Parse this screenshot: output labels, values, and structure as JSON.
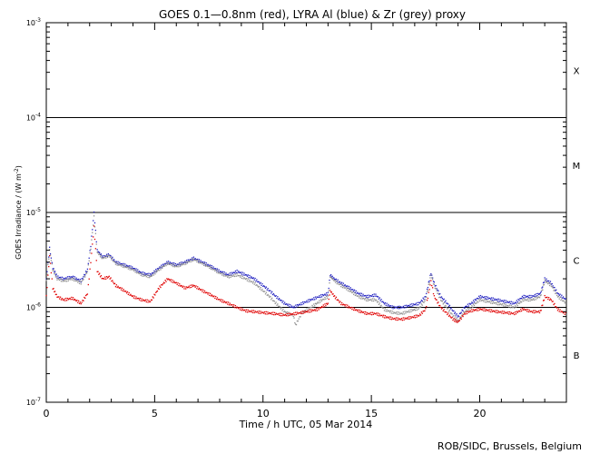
{
  "chart_data": {
    "type": "scatter",
    "title": "GOES 0.1—0.8nm (red), LYRA Al (blue) & Zr (grey) proxy",
    "xlabel": "Time / h UTC, 05 Mar 2014",
    "ylabel_main": "GOES Irradiance / (W m",
    "ylabel_exp": "-2",
    "ylabel_close": ")",
    "credit": "ROB/SIDC, Brussels, Belgium",
    "xlim": [
      0,
      24
    ],
    "ylim_log10": [
      -7,
      -3
    ],
    "y_scale": "log",
    "x_ticks": [
      {
        "value": 0,
        "label": "0"
      },
      {
        "value": 5,
        "label": "5"
      },
      {
        "value": 10,
        "label": "10"
      },
      {
        "value": 15,
        "label": "15"
      },
      {
        "value": 20,
        "label": "20"
      }
    ],
    "y_ticks": [
      {
        "exp": -7,
        "base": "10",
        "sup": "-7"
      },
      {
        "exp": -6,
        "base": "10",
        "sup": "-6"
      },
      {
        "exp": -5,
        "base": "10",
        "sup": "-5"
      },
      {
        "exp": -4,
        "base": "10",
        "sup": "-4"
      },
      {
        "exp": -3,
        "base": "10",
        "sup": "-3"
      }
    ],
    "flare_classes": [
      {
        "label": "X",
        "center_log10": -3.5
      },
      {
        "label": "M",
        "center_log10": -4.5
      },
      {
        "label": "C",
        "center_log10": -5.5
      },
      {
        "label": "B",
        "center_log10": -6.5
      }
    ],
    "threshold_lines_log10": [
      -4,
      -5,
      -6
    ],
    "series": [
      {
        "color": "#2020c0",
        "points": [
          [
            0.0,
            2e-06
          ],
          [
            0.15,
            4.2e-06
          ],
          [
            0.3,
            2.6e-06
          ],
          [
            0.5,
            2.1e-06
          ],
          [
            0.8,
            2e-06
          ],
          [
            1.2,
            2.1e-06
          ],
          [
            1.6,
            1.9e-06
          ],
          [
            1.9,
            2.5e-06
          ],
          [
            2.05,
            4.5e-06
          ],
          [
            2.2,
            1e-05
          ],
          [
            2.35,
            4e-06
          ],
          [
            2.6,
            3.4e-06
          ],
          [
            2.9,
            3.6e-06
          ],
          [
            3.2,
            3e-06
          ],
          [
            3.6,
            2.8e-06
          ],
          [
            4.0,
            2.6e-06
          ],
          [
            4.4,
            2.3e-06
          ],
          [
            4.8,
            2.2e-06
          ],
          [
            5.2,
            2.6e-06
          ],
          [
            5.6,
            3e-06
          ],
          [
            6.0,
            2.8e-06
          ],
          [
            6.4,
            3e-06
          ],
          [
            6.8,
            3.3e-06
          ],
          [
            7.2,
            3e-06
          ],
          [
            7.6,
            2.7e-06
          ],
          [
            8.0,
            2.4e-06
          ],
          [
            8.4,
            2.2e-06
          ],
          [
            8.8,
            2.4e-06
          ],
          [
            9.2,
            2.2e-06
          ],
          [
            9.6,
            2e-06
          ],
          [
            10.0,
            1.7e-06
          ],
          [
            10.3,
            1.5e-06
          ],
          [
            10.6,
            1.3e-06
          ],
          [
            11.0,
            1.1e-06
          ],
          [
            11.4,
            1e-06
          ],
          [
            11.8,
            1.1e-06
          ],
          [
            12.2,
            1.2e-06
          ],
          [
            12.6,
            1.3e-06
          ],
          [
            13.0,
            1.4e-06
          ],
          [
            13.1,
            2.2e-06
          ],
          [
            13.3,
            2e-06
          ],
          [
            13.6,
            1.8e-06
          ],
          [
            14.0,
            1.6e-06
          ],
          [
            14.4,
            1.4e-06
          ],
          [
            14.8,
            1.3e-06
          ],
          [
            15.2,
            1.35e-06
          ],
          [
            15.6,
            1.1e-06
          ],
          [
            16.0,
            1e-06
          ],
          [
            16.4,
            1e-06
          ],
          [
            16.8,
            1.05e-06
          ],
          [
            17.2,
            1.1e-06
          ],
          [
            17.5,
            1.3e-06
          ],
          [
            17.75,
            2.3e-06
          ],
          [
            17.9,
            1.8e-06
          ],
          [
            18.2,
            1.3e-06
          ],
          [
            18.5,
            1.1e-06
          ],
          [
            18.8,
            9e-07
          ],
          [
            19.0,
            8e-07
          ],
          [
            19.3,
            1e-06
          ],
          [
            19.6,
            1.1e-06
          ],
          [
            20.0,
            1.3e-06
          ],
          [
            20.4,
            1.25e-06
          ],
          [
            20.8,
            1.2e-06
          ],
          [
            21.2,
            1.15e-06
          ],
          [
            21.6,
            1.1e-06
          ],
          [
            22.0,
            1.3e-06
          ],
          [
            22.4,
            1.3e-06
          ],
          [
            22.8,
            1.4e-06
          ],
          [
            23.0,
            2e-06
          ],
          [
            23.3,
            1.8e-06
          ],
          [
            23.6,
            1.4e-06
          ],
          [
            24.0,
            1.2e-06
          ]
        ]
      },
      {
        "color": "#909090",
        "points": [
          [
            0.0,
            1.9e-06
          ],
          [
            0.15,
            4e-06
          ],
          [
            0.3,
            2.5e-06
          ],
          [
            0.5,
            2e-06
          ],
          [
            0.8,
            1.9e-06
          ],
          [
            1.2,
            2e-06
          ],
          [
            1.6,
            1.8e-06
          ],
          [
            1.9,
            2.4e-06
          ],
          [
            2.05,
            4.2e-06
          ],
          [
            2.2,
            9e-06
          ],
          [
            2.35,
            3.8e-06
          ],
          [
            2.6,
            3.3e-06
          ],
          [
            2.9,
            3.5e-06
          ],
          [
            3.2,
            2.9e-06
          ],
          [
            3.6,
            2.7e-06
          ],
          [
            4.0,
            2.5e-06
          ],
          [
            4.4,
            2.2e-06
          ],
          [
            4.8,
            2.1e-06
          ],
          [
            5.2,
            2.5e-06
          ],
          [
            5.6,
            2.9e-06
          ],
          [
            6.0,
            2.7e-06
          ],
          [
            6.4,
            2.9e-06
          ],
          [
            6.8,
            3.2e-06
          ],
          [
            7.2,
            2.9e-06
          ],
          [
            7.6,
            2.6e-06
          ],
          [
            8.0,
            2.3e-06
          ],
          [
            8.4,
            2.1e-06
          ],
          [
            8.8,
            2.2e-06
          ],
          [
            9.2,
            2e-06
          ],
          [
            9.6,
            1.8e-06
          ],
          [
            10.0,
            1.5e-06
          ],
          [
            10.3,
            1.3e-06
          ],
          [
            10.6,
            1.1e-06
          ],
          [
            11.0,
            9e-07
          ],
          [
            11.4,
            8.2e-07
          ],
          [
            11.5,
            6.5e-07
          ],
          [
            11.8,
            8.8e-07
          ],
          [
            12.2,
            1e-06
          ],
          [
            12.6,
            1.15e-06
          ],
          [
            13.0,
            1.3e-06
          ],
          [
            13.1,
            2.1e-06
          ],
          [
            13.3,
            1.9e-06
          ],
          [
            13.6,
            1.7e-06
          ],
          [
            14.0,
            1.5e-06
          ],
          [
            14.4,
            1.3e-06
          ],
          [
            14.8,
            1.2e-06
          ],
          [
            15.2,
            1.2e-06
          ],
          [
            15.6,
            9.5e-07
          ],
          [
            16.0,
            8.8e-07
          ],
          [
            16.4,
            8.6e-07
          ],
          [
            16.8,
            9.2e-07
          ],
          [
            17.2,
            9.8e-07
          ],
          [
            17.5,
            1.2e-06
          ],
          [
            17.75,
            2.2e-06
          ],
          [
            17.9,
            1.7e-06
          ],
          [
            18.2,
            1.2e-06
          ],
          [
            18.5,
            9.8e-07
          ],
          [
            18.8,
            8e-07
          ],
          [
            19.0,
            7.2e-07
          ],
          [
            19.3,
            9e-07
          ],
          [
            19.6,
            1e-06
          ],
          [
            20.0,
            1.2e-06
          ],
          [
            20.4,
            1.15e-06
          ],
          [
            20.8,
            1.1e-06
          ],
          [
            21.2,
            1.05e-06
          ],
          [
            21.6,
            1e-06
          ],
          [
            22.0,
            1.2e-06
          ],
          [
            22.4,
            1.2e-06
          ],
          [
            22.8,
            1.3e-06
          ],
          [
            23.0,
            1.9e-06
          ],
          [
            23.3,
            1.7e-06
          ],
          [
            23.6,
            1.3e-06
          ],
          [
            24.0,
            1.1e-06
          ]
        ]
      },
      {
        "color": "#e00000",
        "points": [
          [
            0.0,
            1.3e-06
          ],
          [
            0.15,
            3.5e-06
          ],
          [
            0.3,
            1.6e-06
          ],
          [
            0.5,
            1.3e-06
          ],
          [
            0.8,
            1.2e-06
          ],
          [
            1.2,
            1.25e-06
          ],
          [
            1.6,
            1.1e-06
          ],
          [
            1.9,
            1.4e-06
          ],
          [
            2.05,
            3e-06
          ],
          [
            2.2,
            7e-06
          ],
          [
            2.35,
            2.4e-06
          ],
          [
            2.6,
            2e-06
          ],
          [
            2.9,
            2.1e-06
          ],
          [
            3.2,
            1.7e-06
          ],
          [
            3.6,
            1.5e-06
          ],
          [
            4.0,
            1.3e-06
          ],
          [
            4.4,
            1.2e-06
          ],
          [
            4.8,
            1.15e-06
          ],
          [
            5.2,
            1.6e-06
          ],
          [
            5.6,
            2e-06
          ],
          [
            6.0,
            1.8e-06
          ],
          [
            6.4,
            1.6e-06
          ],
          [
            6.8,
            1.7e-06
          ],
          [
            7.2,
            1.5e-06
          ],
          [
            7.6,
            1.35e-06
          ],
          [
            8.0,
            1.2e-06
          ],
          [
            8.4,
            1.1e-06
          ],
          [
            8.8,
            1e-06
          ],
          [
            9.2,
            9.2e-07
          ],
          [
            10.0,
            8.8e-07
          ],
          [
            10.5,
            8.6e-07
          ],
          [
            11.0,
            8.3e-07
          ],
          [
            11.5,
            8.6e-07
          ],
          [
            12.0,
            9e-07
          ],
          [
            12.5,
            9.5e-07
          ],
          [
            13.0,
            1.1e-06
          ],
          [
            13.1,
            1.5e-06
          ],
          [
            13.3,
            1.3e-06
          ],
          [
            13.6,
            1.1e-06
          ],
          [
            14.0,
            1e-06
          ],
          [
            14.4,
            9.2e-07
          ],
          [
            14.8,
            8.6e-07
          ],
          [
            15.2,
            8.6e-07
          ],
          [
            15.6,
            8e-07
          ],
          [
            16.0,
            7.6e-07
          ],
          [
            16.4,
            7.5e-07
          ],
          [
            16.8,
            7.8e-07
          ],
          [
            17.2,
            8.2e-07
          ],
          [
            17.5,
            9.5e-07
          ],
          [
            17.75,
            1.9e-06
          ],
          [
            17.9,
            1.3e-06
          ],
          [
            18.2,
            1e-06
          ],
          [
            18.5,
            8.6e-07
          ],
          [
            18.8,
            7.4e-07
          ],
          [
            19.0,
            7e-07
          ],
          [
            19.3,
            8.6e-07
          ],
          [
            19.6,
            9.2e-07
          ],
          [
            20.0,
            9.6e-07
          ],
          [
            20.4,
            9.3e-07
          ],
          [
            20.8,
            9e-07
          ],
          [
            21.2,
            8.8e-07
          ],
          [
            21.6,
            8.6e-07
          ],
          [
            22.0,
            9.6e-07
          ],
          [
            22.4,
            9e-07
          ],
          [
            22.8,
            9e-07
          ],
          [
            23.0,
            1.3e-06
          ],
          [
            23.3,
            1.2e-06
          ],
          [
            23.6,
            9.5e-07
          ],
          [
            24.0,
            8.5e-07
          ]
        ]
      }
    ]
  }
}
